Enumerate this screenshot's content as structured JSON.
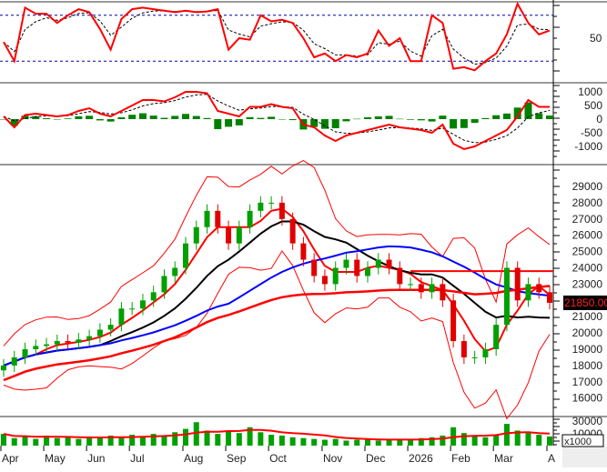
{
  "chart_data": {
    "type": "candlestick",
    "x_labels": [
      "Apr",
      "May",
      "Jun",
      "Jul",
      "Aug",
      "Sep",
      "Oct",
      "Nov",
      "Dec",
      "2026",
      "Feb",
      "Mar",
      "A"
    ],
    "x_label_weeks": [
      0,
      4,
      8,
      12,
      17,
      21,
      25,
      30,
      34,
      38,
      42,
      46,
      51
    ],
    "closes": [
      18000,
      18500,
      19000,
      19200,
      19300,
      19500,
      19400,
      19600,
      19800,
      20200,
      20500,
      21500,
      21500,
      22000,
      22500,
      23500,
      24000,
      25500,
      26500,
      27500,
      26500,
      25500,
      26500,
      27500,
      28000,
      28000,
      27000,
      25500,
      24500,
      23500,
      23000,
      24000,
      24500,
      23500,
      24000,
      24500,
      24000,
      23000,
      23000,
      22500,
      23000,
      22000,
      19500,
      18500,
      18500,
      19000,
      20500,
      24000,
      22000,
      23000,
      22500,
      21850
    ],
    "volume": [
      14000,
      9000,
      11000,
      8000,
      12000,
      9000,
      10000,
      8000,
      11000,
      9000,
      12000,
      10000,
      13000,
      11000,
      14000,
      12000,
      16000,
      20000,
      28000,
      18000,
      14000,
      17000,
      15000,
      22000,
      16000,
      13000,
      12000,
      10000,
      9000,
      8000,
      7000,
      8000,
      6000,
      7000,
      8000,
      6000,
      7000,
      8000,
      7000,
      9000,
      10000,
      12000,
      22000,
      15000,
      11000,
      10000,
      12000,
      26000,
      18000,
      15000,
      13000,
      11000
    ],
    "oscillator": [
      45,
      20,
      90,
      82,
      82,
      70,
      80,
      88,
      84,
      62,
      35,
      75,
      88,
      90,
      88,
      86,
      84,
      86,
      84,
      85,
      88,
      35,
      50,
      48,
      80,
      72,
      74,
      70,
      50,
      25,
      30,
      20,
      28,
      25,
      30,
      60,
      40,
      50,
      20,
      20,
      80,
      70,
      10,
      12,
      8,
      20,
      30,
      55,
      95,
      70,
      55,
      60
    ],
    "macd": [
      100,
      -300,
      150,
      200,
      150,
      100,
      150,
      300,
      400,
      200,
      100,
      300,
      500,
      700,
      700,
      650,
      800,
      1000,
      1000,
      950,
      300,
      200,
      100,
      450,
      450,
      550,
      450,
      400,
      -200,
      -300,
      -600,
      -800,
      -600,
      -500,
      -400,
      -300,
      -200,
      -300,
      -350,
      -400,
      -500,
      -200,
      -900,
      -1100,
      -1000,
      -800,
      -600,
      -400,
      100,
      700,
      450,
      450
    ],
    "price_ticks": [
      "29000",
      "28000",
      "27000",
      "26000",
      "25000",
      "24000",
      "23000",
      "21000",
      "20000",
      "19000",
      "18000",
      "17000",
      "16000"
    ],
    "price_ylim": [
      15000,
      30000
    ],
    "last_price_label": "21850.00",
    "resistance_level": 23800,
    "oscillator_ticks": [
      "50"
    ],
    "oscillator_levels": [
      20,
      80
    ],
    "macd_ticks": [
      "1000",
      "500",
      "0",
      "-500",
      "-1000"
    ],
    "volume_ticks": [
      "30000",
      "10000"
    ],
    "volume_unit": "x1000",
    "colors": {
      "up": "#00a000",
      "down": "#e00000",
      "ma_short": "#000000",
      "ma_mid": "#0000ff",
      "ma_long": "#ff0000",
      "band": "#ff0000",
      "histogram": "#008000",
      "dotted": "#0000aa",
      "last_price_bg": "#000000",
      "last_price_fg": "#ff2020"
    }
  }
}
